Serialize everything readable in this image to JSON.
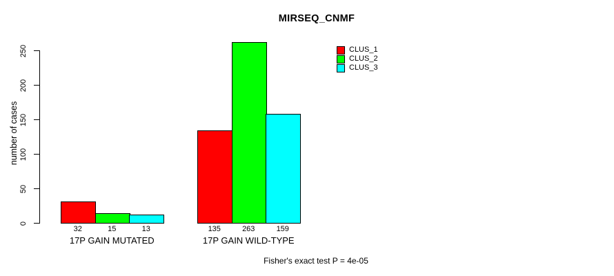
{
  "chart_data": {
    "type": "bar",
    "title": "MIRSEQ_CNMF",
    "ylabel": "number of cases",
    "xlabel": "",
    "categories": [
      "17P GAIN MUTATED",
      "17P GAIN WILD-TYPE"
    ],
    "series": [
      {
        "name": "CLUS_1",
        "color": "#FF0000",
        "values": [
          32,
          135
        ]
      },
      {
        "name": "CLUS_2",
        "color": "#00FF00",
        "values": [
          15,
          263
        ]
      },
      {
        "name": "CLUS_3",
        "color": "#00FFFF",
        "values": [
          13,
          159
        ]
      }
    ],
    "yticks": [
      0,
      50,
      100,
      150,
      200,
      250
    ],
    "ylim": [
      0,
      265
    ],
    "grid": false,
    "bar_value_labels_shown": true,
    "legend_position": "top-right",
    "annotation": "Fisher's exact test P = 4e-05"
  },
  "colors": {
    "background": "#FFFFFF",
    "axis": "#000000",
    "text": "#000000",
    "bar_border": "#000000"
  }
}
